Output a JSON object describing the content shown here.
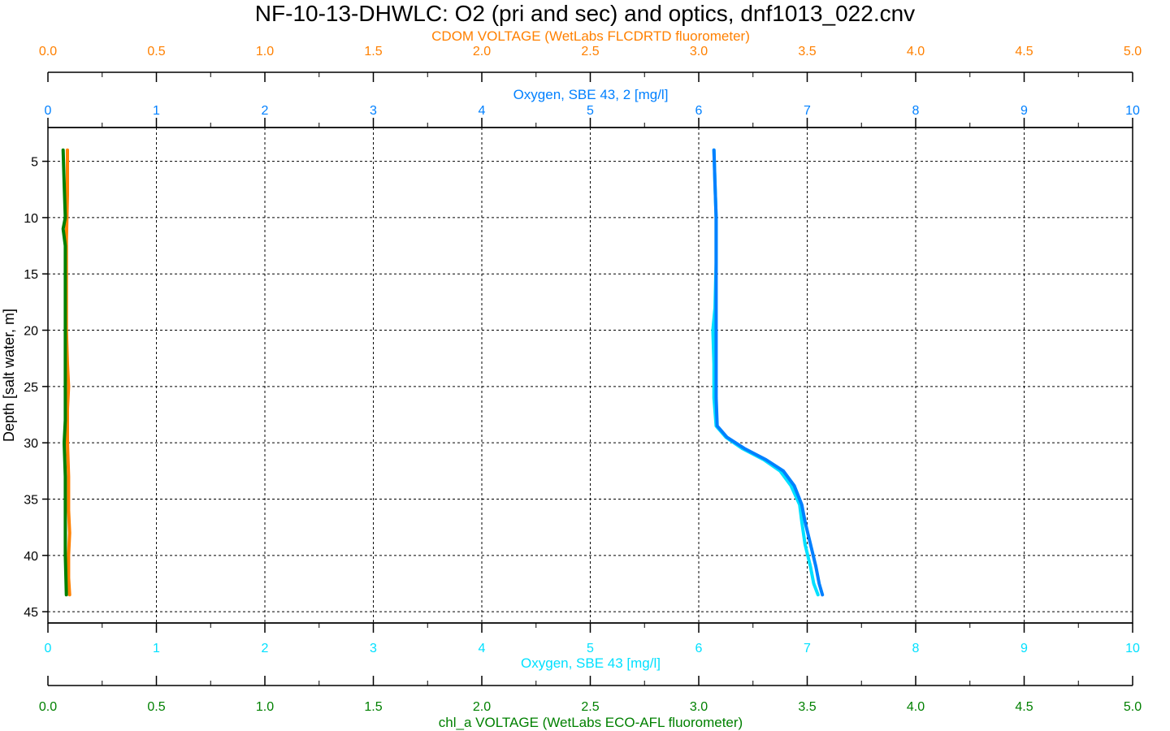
{
  "chart_data": {
    "type": "line",
    "title": "NF-10-13-DHWLC: O2 (pri and sec) and optics, dnf1013_022.cnv",
    "ylabel": "Depth [salt water, m]",
    "ylim": [
      2,
      46
    ],
    "y_inverted": true,
    "y_ticks": [
      5,
      10,
      15,
      20,
      25,
      30,
      35,
      40,
      45
    ],
    "grid": true,
    "axes": {
      "top_outer": {
        "label": "CDOM VOLTAGE (WetLabs FLCDRTD fluorometer)",
        "range": [
          0.0,
          5.0
        ],
        "ticks": [
          "0.0",
          "0.5",
          "1.0",
          "1.5",
          "2.0",
          "2.5",
          "3.0",
          "3.5",
          "4.0",
          "4.5",
          "5.0"
        ],
        "color": "#ff8000"
      },
      "top_inner": {
        "label": "Oxygen, SBE 43, 2 [mg/l]",
        "range": [
          0,
          10
        ],
        "ticks": [
          "0",
          "1",
          "2",
          "3",
          "4",
          "5",
          "6",
          "7",
          "8",
          "9",
          "10"
        ],
        "color": "#0080ff"
      },
      "bottom_inner": {
        "label": "Oxygen, SBE 43 [mg/l]",
        "range": [
          0,
          10
        ],
        "ticks": [
          "0",
          "1",
          "2",
          "3",
          "4",
          "5",
          "6",
          "7",
          "8",
          "9",
          "10"
        ],
        "color": "#00e0ff"
      },
      "bottom_outer": {
        "label": "chl_a VOLTAGE (WetLabs ECO-AFL fluorometer)",
        "range": [
          0.0,
          5.0
        ],
        "ticks": [
          "0.0",
          "0.5",
          "1.0",
          "1.5",
          "2.0",
          "2.5",
          "3.0",
          "3.5",
          "4.0",
          "4.5",
          "5.0"
        ],
        "color": "#008000"
      }
    },
    "series": [
      {
        "name": "Oxygen, SBE 43 [mg/l]",
        "axis": "bottom_inner",
        "color": "#00e0ff",
        "points": [
          [
            6.14,
            4
          ],
          [
            6.15,
            7
          ],
          [
            6.16,
            10
          ],
          [
            6.16,
            14
          ],
          [
            6.15,
            18
          ],
          [
            6.13,
            20
          ],
          [
            6.14,
            23
          ],
          [
            6.14,
            26
          ],
          [
            6.16,
            28.5
          ],
          [
            6.25,
            29.5
          ],
          [
            6.4,
            30.5
          ],
          [
            6.6,
            31.5
          ],
          [
            6.75,
            32.5
          ],
          [
            6.85,
            33.8
          ],
          [
            6.93,
            35.5
          ],
          [
            6.95,
            37
          ],
          [
            6.98,
            39
          ],
          [
            7.03,
            41
          ],
          [
            7.06,
            42.5
          ],
          [
            7.1,
            43.5
          ]
        ]
      },
      {
        "name": "Oxygen, SBE 43, 2 [mg/l]",
        "axis": "top_inner",
        "color": "#0080ff",
        "points": [
          [
            6.14,
            4
          ],
          [
            6.15,
            7
          ],
          [
            6.16,
            10
          ],
          [
            6.16,
            14
          ],
          [
            6.16,
            18
          ],
          [
            6.16,
            20
          ],
          [
            6.16,
            23
          ],
          [
            6.16,
            26
          ],
          [
            6.17,
            28.5
          ],
          [
            6.26,
            29.5
          ],
          [
            6.42,
            30.5
          ],
          [
            6.62,
            31.5
          ],
          [
            6.78,
            32.5
          ],
          [
            6.88,
            33.8
          ],
          [
            6.95,
            35.5
          ],
          [
            6.98,
            37
          ],
          [
            7.03,
            39
          ],
          [
            7.08,
            41
          ],
          [
            7.11,
            42.5
          ],
          [
            7.14,
            43.5
          ]
        ]
      },
      {
        "name": "CDOM VOLTAGE (WetLabs FLCDRTD fluorometer)",
        "axis": "top_outer",
        "color": "#ff8000",
        "points": [
          [
            0.09,
            4
          ],
          [
            0.09,
            8
          ],
          [
            0.085,
            12
          ],
          [
            0.085,
            16
          ],
          [
            0.085,
            20
          ],
          [
            0.09,
            23
          ],
          [
            0.095,
            25
          ],
          [
            0.09,
            27
          ],
          [
            0.09,
            30
          ],
          [
            0.095,
            33
          ],
          [
            0.095,
            36
          ],
          [
            0.1,
            38
          ],
          [
            0.095,
            40
          ],
          [
            0.095,
            42
          ],
          [
            0.1,
            43.5
          ]
        ]
      },
      {
        "name": "chl_a VOLTAGE (WetLabs ECO-AFL fluorometer)",
        "axis": "bottom_outer",
        "color": "#008000",
        "points": [
          [
            0.07,
            4
          ],
          [
            0.075,
            7
          ],
          [
            0.08,
            10
          ],
          [
            0.07,
            11
          ],
          [
            0.08,
            12.5
          ],
          [
            0.08,
            16
          ],
          [
            0.08,
            20
          ],
          [
            0.08,
            23
          ],
          [
            0.08,
            25
          ],
          [
            0.08,
            28
          ],
          [
            0.075,
            30
          ],
          [
            0.08,
            33
          ],
          [
            0.08,
            36
          ],
          [
            0.08,
            40
          ],
          [
            0.085,
            43.5
          ]
        ]
      }
    ]
  }
}
